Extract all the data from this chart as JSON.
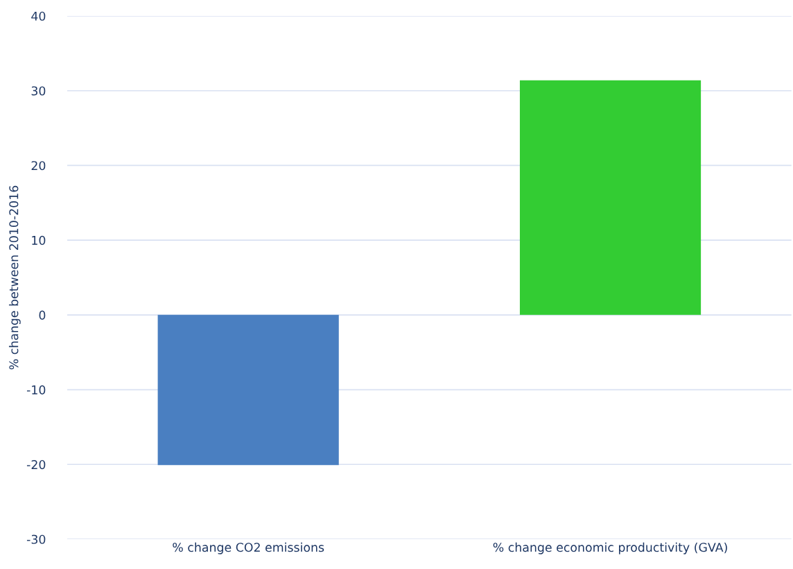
{
  "chart_data": {
    "type": "bar",
    "ylabel": "% change between 2010-2016",
    "categories": [
      "% change CO2 emissions",
      "% change economic productivity (GVA)"
    ],
    "values": [
      -20.1,
      31.4
    ],
    "colors": [
      "#4a7fc1",
      "#33cc33"
    ],
    "ylim": [
      -30,
      40
    ],
    "yticks": [
      -30,
      -20,
      -10,
      0,
      10,
      20,
      30,
      40
    ],
    "grid": "y"
  }
}
